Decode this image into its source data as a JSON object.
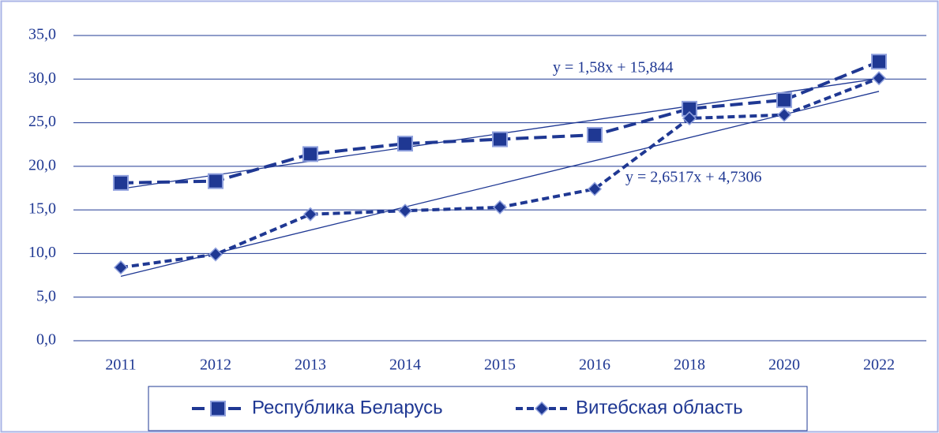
{
  "chart_data": {
    "type": "line",
    "categories": [
      "2011",
      "2012",
      "2013",
      "2014",
      "2015",
      "2016",
      "2018",
      "2020",
      "2022"
    ],
    "series": [
      {
        "name": "Республика Беларусь",
        "color": "#1f3893",
        "marker": "square",
        "values": [
          18.1,
          18.3,
          21.4,
          22.6,
          23.1,
          23.6,
          26.6,
          27.6,
          32.0
        ]
      },
      {
        "name": "Витебская область",
        "color": "#1f3893",
        "marker": "diamond",
        "values": [
          8.4,
          9.9,
          14.5,
          14.9,
          15.3,
          17.4,
          25.5,
          25.9,
          30.1
        ]
      }
    ],
    "trendlines": [
      {
        "label": "y = 1,58x + 15,844",
        "slope": 1.58,
        "intercept": 15.844
      },
      {
        "label": "y = 2,6517x + 4,7306",
        "slope": 2.6517,
        "intercept": 4.7306
      }
    ],
    "ylim": [
      0,
      35
    ],
    "yticks": [
      {
        "value": 0,
        "label": "0,0"
      },
      {
        "value": 5,
        "label": "5,0"
      },
      {
        "value": 10,
        "label": "10,0"
      },
      {
        "value": 15,
        "label": "15,0"
      },
      {
        "value": 20,
        "label": "20,0"
      },
      {
        "value": 25,
        "label": "25,0"
      },
      {
        "value": 30,
        "label": "30,0"
      },
      {
        "value": 35,
        "label": "35,0"
      }
    ],
    "grid": true,
    "legend": "bottom"
  }
}
